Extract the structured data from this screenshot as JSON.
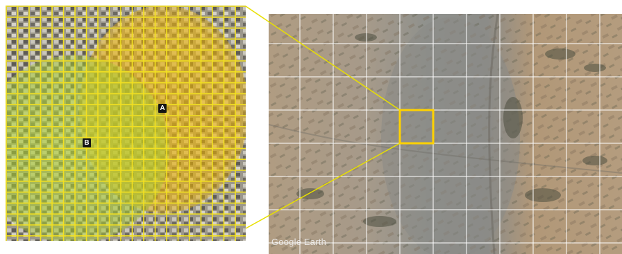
{
  "zoom_view": {
    "markers": {
      "a": "A",
      "b": "B"
    },
    "grid_color": "#f2e020",
    "coverage_zones": [
      {
        "marker": "A",
        "color": "#f0c000"
      },
      {
        "marker": "B",
        "color": "#a8cc30"
      }
    ]
  },
  "satellite_view": {
    "watermark": "Google Earth",
    "grid_color": "#ffffff",
    "highlight_color": "#ffd200"
  },
  "connector_color": "#e8e000"
}
